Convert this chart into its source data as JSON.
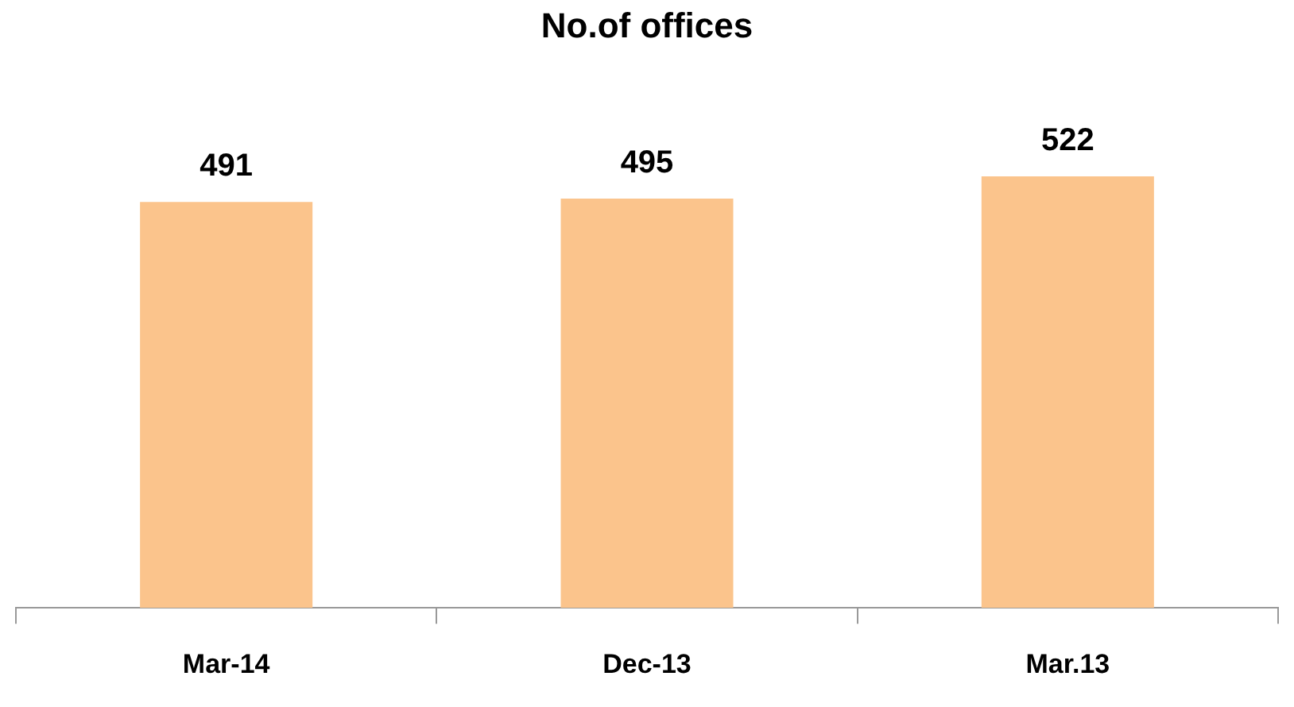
{
  "chart_data": {
    "type": "bar",
    "title": "No.of offices",
    "categories": [
      "Mar-14",
      "Dec-13",
      "Mar.13"
    ],
    "values": [
      491,
      495,
      522
    ],
    "color": "#fbc48c",
    "tick_labels": "x",
    "data_labels": true,
    "grid": false,
    "legend": false
  }
}
